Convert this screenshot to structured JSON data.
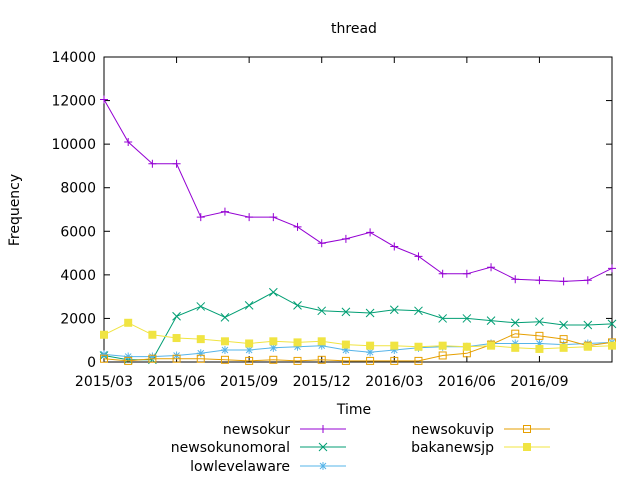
{
  "chart_data": {
    "type": "line",
    "title": "thread",
    "xlabel": "Time",
    "ylabel": "Frequency",
    "ylim": [
      0,
      14000
    ],
    "yticks": [
      0,
      2000,
      4000,
      6000,
      8000,
      10000,
      12000,
      14000
    ],
    "xlim": [
      "2015/03",
      "2016/12"
    ],
    "xticks": [
      {
        "x": "2015/03",
        "label": "2015/03"
      },
      {
        "x": "2015/06",
        "label": "2015/06"
      },
      {
        "x": "2015/09",
        "label": "2015/09"
      },
      {
        "x": "2015/12",
        "label": "2015/12"
      },
      {
        "x": "2016/03",
        "label": "2016/03"
      },
      {
        "x": "2016/06",
        "label": "2016/06"
      },
      {
        "x": "2016/09",
        "label": "2016/09"
      }
    ],
    "x": [
      "2015/03",
      "2015/04",
      "2015/05",
      "2015/06",
      "2015/07",
      "2015/08",
      "2015/09",
      "2015/10",
      "2015/11",
      "2015/12",
      "2016/01",
      "2016/02",
      "2016/03",
      "2016/04",
      "2016/05",
      "2016/06",
      "2016/07",
      "2016/08",
      "2016/09",
      "2016/10",
      "2016/11",
      "2016/12"
    ],
    "grid": false,
    "legend_position": "bottom",
    "series": [
      {
        "name": "newsokur",
        "color": "#9400d3",
        "marker": "plus",
        "values": [
          12050,
          10100,
          9100,
          9100,
          6650,
          6900,
          6650,
          6650,
          6200,
          5450,
          5650,
          5950,
          5300,
          4850,
          4050,
          4050,
          4350,
          3800,
          3750,
          3700,
          3750,
          4300
        ]
      },
      {
        "name": "newsokunomoral",
        "color": "#009e73",
        "marker": "cross",
        "values": [
          300,
          100,
          100,
          2100,
          2550,
          2050,
          2600,
          3200,
          2600,
          2350,
          2300,
          2250,
          2400,
          2350,
          2000,
          2000,
          1900,
          1800,
          1850,
          1700,
          1700,
          1750
        ]
      },
      {
        "name": "lowlevelaware",
        "color": "#56b4e9",
        "marker": "star",
        "values": [
          350,
          250,
          250,
          300,
          400,
          550,
          550,
          650,
          700,
          750,
          550,
          450,
          550,
          650,
          700,
          700,
          850,
          850,
          850,
          800,
          850,
          900
        ]
      },
      {
        "name": "newsokuvip",
        "color": "#e69f00",
        "marker": "square-open",
        "values": [
          150,
          50,
          150,
          150,
          150,
          100,
          50,
          100,
          50,
          100,
          50,
          50,
          50,
          50,
          300,
          400,
          800,
          1300,
          1200,
          1050,
          750,
          900
        ]
      },
      {
        "name": "bakanewsjp",
        "color": "#f0e442",
        "marker": "square-filled",
        "values": [
          1250,
          1800,
          1250,
          1100,
          1050,
          950,
          850,
          950,
          900,
          950,
          800,
          750,
          750,
          700,
          750,
          700,
          750,
          650,
          600,
          650,
          700,
          750
        ]
      }
    ]
  }
}
